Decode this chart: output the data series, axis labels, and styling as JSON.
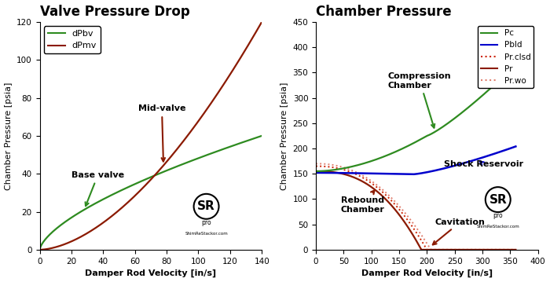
{
  "left_title": "Valve Pressure Drop",
  "right_title": "Chamber Pressure",
  "xlabel": "Damper Rod Velocity [in/s]",
  "ylabel": "Chamber Pressure [psia]",
  "left_xlim": [
    0,
    140
  ],
  "left_ylim": [
    0,
    120
  ],
  "left_xticks": [
    0,
    20,
    40,
    60,
    80,
    100,
    120,
    140
  ],
  "left_yticks": [
    0,
    20,
    40,
    60,
    80,
    100,
    120
  ],
  "right_xlim": [
    0,
    400
  ],
  "right_ylim": [
    0,
    450
  ],
  "right_xticks": [
    0,
    50,
    100,
    150,
    200,
    250,
    300,
    350,
    400
  ],
  "right_yticks": [
    0,
    50,
    100,
    150,
    200,
    250,
    300,
    350,
    400,
    450
  ],
  "color_green": "#2e8b20",
  "color_dark_red": "#8b1a00",
  "color_blue": "#0000cc",
  "color_red_solid": "#8b1a00",
  "color_red_dotted": "#cc2200",
  "color_pink_dotted": "#e08070",
  "bg_color": "#ffffff"
}
